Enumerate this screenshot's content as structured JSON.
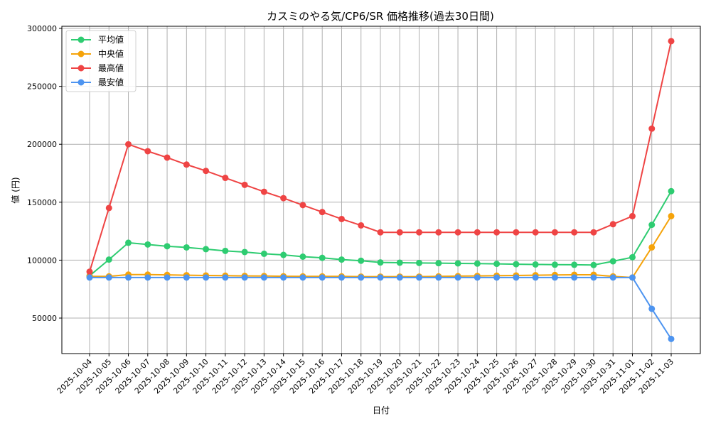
{
  "chart_data": {
    "type": "line",
    "title": "カスミのやる気/CP6/SR 価格推移(過去30日間)",
    "xlabel": "日付",
    "ylabel": "値 (円)",
    "ylim": [
      20000,
      302000
    ],
    "yticks": [
      50000,
      100000,
      150000,
      200000,
      250000,
      300000
    ],
    "grid": true,
    "legend_position": "upper left",
    "x": [
      "2025-10-04",
      "2025-10-05",
      "2025-10-06",
      "2025-10-07",
      "2025-10-08",
      "2025-10-09",
      "2025-10-10",
      "2025-10-11",
      "2025-10-12",
      "2025-10-13",
      "2025-10-14",
      "2025-10-15",
      "2025-10-16",
      "2025-10-17",
      "2025-10-18",
      "2025-10-19",
      "2025-10-20",
      "2025-10-21",
      "2025-10-22",
      "2025-10-23",
      "2025-10-24",
      "2025-10-25",
      "2025-10-26",
      "2025-10-27",
      "2025-10-28",
      "2025-10-29",
      "2025-10-30",
      "2025-10-31",
      "2025-11-01",
      "2025-11-02",
      "2025-11-03"
    ],
    "series": [
      {
        "name": "平均値",
        "color": "#2ecc71",
        "values": [
          86500,
          100500,
          115000,
          113500,
          112000,
          111000,
          109500,
          108000,
          107000,
          105500,
          104500,
          103000,
          102000,
          100500,
          99500,
          98000,
          97800,
          97600,
          97400,
          97200,
          97000,
          96800,
          96500,
          96300,
          96100,
          96000,
          95800,
          99000,
          102500,
          130500,
          159500
        ]
      },
      {
        "name": "中央値",
        "color": "#f5a30a",
        "values": [
          86000,
          86000,
          87500,
          87500,
          87300,
          87000,
          86800,
          86600,
          86400,
          86300,
          86100,
          86000,
          86000,
          86000,
          85800,
          85800,
          85800,
          85800,
          86000,
          86200,
          86400,
          86600,
          86800,
          87000,
          87200,
          87400,
          87400,
          86000,
          85000,
          111000,
          138000
        ]
      },
      {
        "name": "最高値",
        "color": "#ef4444",
        "values": [
          90000,
          145000,
          200000,
          194000,
          188500,
          182500,
          177000,
          171000,
          165000,
          159000,
          153500,
          147500,
          141500,
          135500,
          130000,
          124000,
          124000,
          124000,
          124000,
          124000,
          124000,
          124000,
          124000,
          124000,
          124000,
          124000,
          124000,
          131000,
          138000,
          213500,
          289000
        ]
      },
      {
        "name": "最安値",
        "color": "#4d94f0",
        "values": [
          85000,
          85000,
          85000,
          85000,
          85000,
          85000,
          85000,
          85000,
          85000,
          85000,
          85000,
          85000,
          85000,
          85000,
          85000,
          85000,
          85000,
          85000,
          85000,
          85000,
          85000,
          85000,
          85000,
          85000,
          85000,
          85000,
          85000,
          85000,
          85000,
          58000,
          32000
        ]
      }
    ]
  }
}
